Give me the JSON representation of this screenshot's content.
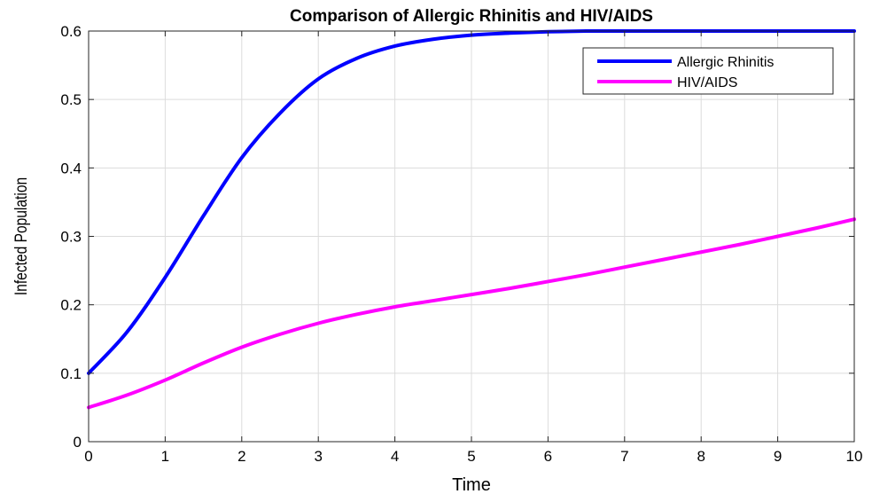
{
  "chart_data": {
    "type": "line",
    "title": "Comparison of Allergic Rhinitis  and HIV/AIDS",
    "xlabel": "Time",
    "ylabel": "Infected Population",
    "xlim": [
      0,
      10
    ],
    "ylim": [
      0,
      0.6
    ],
    "xticks": [
      "0",
      "1",
      "2",
      "3",
      "4",
      "5",
      "6",
      "7",
      "8",
      "9",
      "10"
    ],
    "yticks": [
      "0",
      "0.1",
      "0.2",
      "0.3",
      "0.4",
      "0.5",
      "0.6"
    ],
    "grid": true,
    "legend_position": "top-right",
    "x": [
      0,
      0.5,
      1,
      1.5,
      2,
      2.5,
      3,
      3.5,
      4,
      4.5,
      5,
      5.5,
      6,
      6.5,
      7,
      7.5,
      8,
      8.5,
      9,
      9.5,
      10
    ],
    "series": [
      {
        "name": "Allergic Rhinitis",
        "color": "#0000ff",
        "values": [
          0.1,
          0.16,
          0.24,
          0.33,
          0.415,
          0.48,
          0.53,
          0.56,
          0.578,
          0.588,
          0.594,
          0.597,
          0.599,
          0.6,
          0.6,
          0.6,
          0.6,
          0.6,
          0.6,
          0.6,
          0.6
        ]
      },
      {
        "name": "HIV/AIDS",
        "color": "#ff00ff",
        "values": [
          0.05,
          0.068,
          0.09,
          0.115,
          0.138,
          0.157,
          0.173,
          0.186,
          0.197,
          0.206,
          0.215,
          0.224,
          0.234,
          0.244,
          0.255,
          0.266,
          0.277,
          0.288,
          0.3,
          0.312,
          0.325
        ]
      }
    ]
  }
}
